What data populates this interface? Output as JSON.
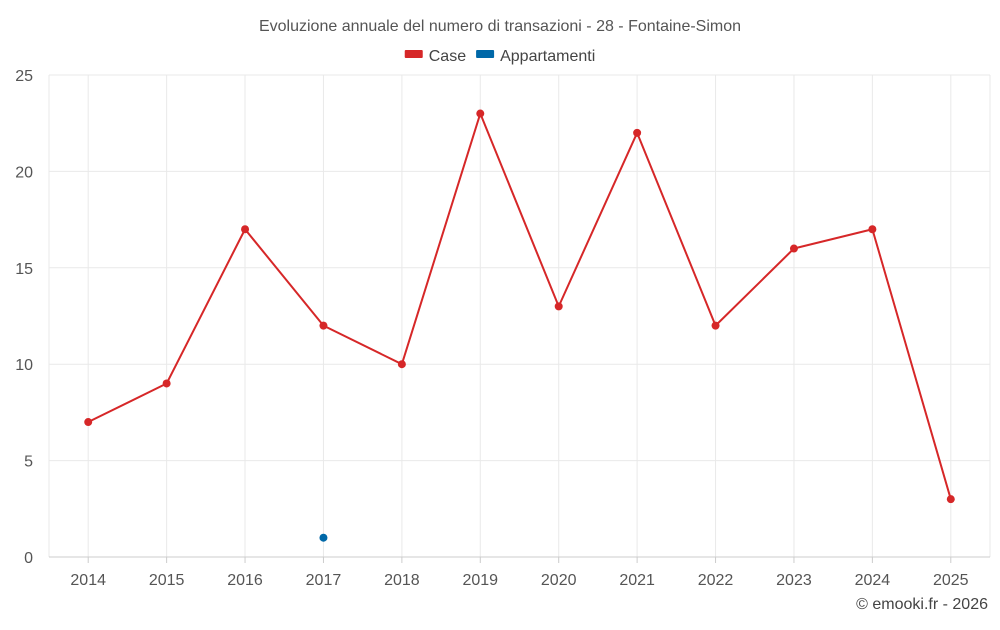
{
  "chart_data": {
    "type": "line",
    "title": "Evoluzione annuale del numero di transazioni - 28 - Fontaine-Simon",
    "categories": [
      "2014",
      "2015",
      "2016",
      "2017",
      "2018",
      "2019",
      "2020",
      "2021",
      "2022",
      "2023",
      "2024",
      "2025"
    ],
    "series": [
      {
        "name": "Case",
        "color": "#d62728",
        "values": [
          7,
          9,
          17,
          12,
          10,
          23,
          13,
          22,
          12,
          16,
          17,
          3
        ]
      },
      {
        "name": "Appartamenti",
        "color": "#0068a8",
        "values": [
          null,
          null,
          null,
          1,
          null,
          null,
          null,
          null,
          null,
          null,
          null,
          null
        ]
      }
    ],
    "ylim": [
      0,
      25
    ],
    "yticks": [
      0,
      5,
      10,
      15,
      20,
      25
    ],
    "grid": true,
    "legend_position": "top-center",
    "xlabel": "",
    "ylabel": ""
  },
  "credit": "© emooki.fr - 2026"
}
